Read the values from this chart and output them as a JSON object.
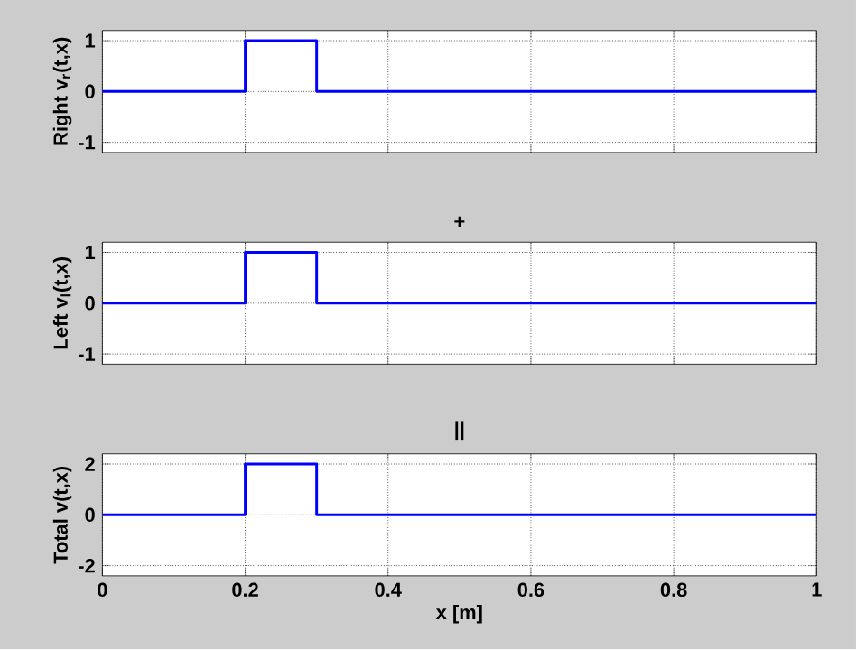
{
  "chart_data": [
    {
      "type": "line",
      "ylabel": "Right v$_{r}$(t,x)",
      "x": [
        0,
        0.2,
        0.2,
        0.3,
        0.3,
        1
      ],
      "series": [
        {
          "color": "#0000ff",
          "values": [
            0,
            0,
            1,
            1,
            0,
            0
          ]
        }
      ],
      "xlim": [
        0,
        1
      ],
      "xticks": [
        0,
        0.2,
        0.4,
        0.6,
        0.8,
        1
      ],
      "ylim": [
        -1.2,
        1.2
      ],
      "yticks": [
        -1,
        0,
        1
      ],
      "grid": true,
      "tick_labels": "y"
    },
    {
      "type": "line",
      "title": "+",
      "ylabel": "Left v$_{l}$(t,x)",
      "x": [
        0,
        0.2,
        0.2,
        0.3,
        0.3,
        1
      ],
      "series": [
        {
          "color": "#0000ff",
          "values": [
            0,
            0,
            1,
            1,
            0,
            0
          ]
        }
      ],
      "xlim": [
        0,
        1
      ],
      "xticks": [
        0,
        0.2,
        0.4,
        0.6,
        0.8,
        1
      ],
      "ylim": [
        -1.2,
        1.2
      ],
      "yticks": [
        -1,
        0,
        1
      ],
      "grid": true,
      "tick_labels": "y"
    },
    {
      "type": "line",
      "title": "||",
      "ylabel": "Total v(t,x)",
      "xlabel": "x [m]",
      "x": [
        0,
        0.2,
        0.2,
        0.3,
        0.3,
        1
      ],
      "series": [
        {
          "color": "#0000ff",
          "values": [
            0,
            0,
            2,
            2,
            0,
            0
          ]
        }
      ],
      "xlim": [
        0,
        1
      ],
      "xticks": [
        0,
        0.2,
        0.4,
        0.6,
        0.8,
        1
      ],
      "ylim": [
        -2.4,
        2.4
      ],
      "yticks": [
        -2,
        0,
        2
      ],
      "grid": true
    }
  ]
}
